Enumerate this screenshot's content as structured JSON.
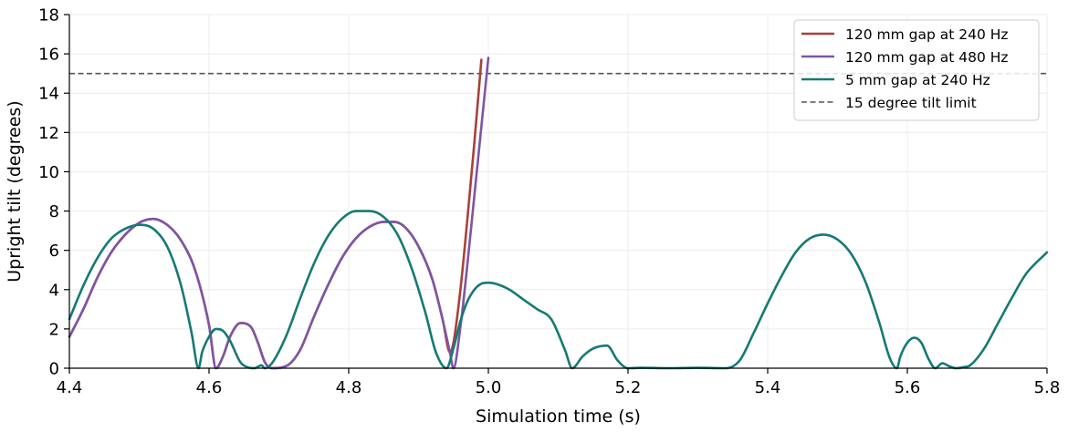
{
  "chart_data": {
    "type": "line",
    "title": "",
    "xlabel": "Simulation time (s)",
    "ylabel": "Upright tilt (degrees)",
    "xlim": [
      4.4,
      5.8
    ],
    "ylim": [
      0,
      18
    ],
    "xticks": [
      4.4,
      4.6,
      4.8,
      5.0,
      5.2,
      5.4,
      5.6,
      5.8
    ],
    "xtick_labels": [
      "4.4",
      "4.6",
      "4.8",
      "5.0",
      "5.2",
      "5.4",
      "5.6",
      "5.8"
    ],
    "yticks": [
      0,
      2,
      4,
      6,
      8,
      10,
      12,
      14,
      16,
      18
    ],
    "ytick_labels": [
      "0",
      "2",
      "4",
      "6",
      "8",
      "10",
      "12",
      "14",
      "16",
      "18"
    ],
    "grid": true,
    "legend_position": "top-right",
    "series": [
      {
        "name": "120 mm gap at 240 Hz",
        "color": "#a8413a",
        "x": [
          4.4,
          4.42,
          4.44,
          4.46,
          4.48,
          4.5,
          4.51,
          4.52,
          4.54,
          4.56,
          4.58,
          4.6,
          4.61,
          4.62,
          4.63,
          4.645,
          4.66,
          4.67,
          4.68,
          4.69,
          4.71,
          4.73,
          4.75,
          4.77,
          4.79,
          4.81,
          4.83,
          4.85,
          4.865,
          4.88,
          4.9,
          4.92,
          4.935,
          4.945,
          4.95,
          4.96,
          4.97,
          4.98,
          4.99
        ],
        "y": [
          1.6,
          3.0,
          4.6,
          5.9,
          6.8,
          7.4,
          7.55,
          7.6,
          7.3,
          6.5,
          5.0,
          2.2,
          0.0,
          0.6,
          1.6,
          2.3,
          2.1,
          1.3,
          0.3,
          0.0,
          0.1,
          0.9,
          2.6,
          4.2,
          5.6,
          6.6,
          7.2,
          7.45,
          7.45,
          7.2,
          6.2,
          4.5,
          2.4,
          0.8,
          1.3,
          4.0,
          7.6,
          11.5,
          15.7
        ]
      },
      {
        "name": "120 mm gap at 480 Hz",
        "color": "#7e55a4",
        "x": [
          4.4,
          4.42,
          4.44,
          4.46,
          4.48,
          4.5,
          4.51,
          4.52,
          4.54,
          4.56,
          4.58,
          4.6,
          4.61,
          4.62,
          4.63,
          4.645,
          4.66,
          4.67,
          4.68,
          4.69,
          4.71,
          4.73,
          4.75,
          4.77,
          4.79,
          4.81,
          4.83,
          4.85,
          4.865,
          4.88,
          4.9,
          4.92,
          4.935,
          4.945,
          4.95,
          4.96,
          4.97,
          4.98,
          4.99,
          5.0
        ],
        "y": [
          1.6,
          3.0,
          4.6,
          5.9,
          6.8,
          7.4,
          7.55,
          7.6,
          7.3,
          6.5,
          5.0,
          2.2,
          0.0,
          0.6,
          1.6,
          2.3,
          2.1,
          1.3,
          0.3,
          0.0,
          0.1,
          0.9,
          2.6,
          4.2,
          5.6,
          6.6,
          7.2,
          7.45,
          7.45,
          7.2,
          6.2,
          4.5,
          2.4,
          0.8,
          0.0,
          2.1,
          5.3,
          8.8,
          12.3,
          15.8
        ]
      },
      {
        "name": "5 mm gap at 240 Hz",
        "color": "#157a74",
        "x": [
          4.4,
          4.42,
          4.44,
          4.46,
          4.48,
          4.5,
          4.52,
          4.54,
          4.56,
          4.575,
          4.585,
          4.59,
          4.6,
          4.61,
          4.62,
          4.63,
          4.645,
          4.655,
          4.665,
          4.675,
          4.68,
          4.69,
          4.71,
          4.73,
          4.75,
          4.77,
          4.79,
          4.81,
          4.83,
          4.85,
          4.87,
          4.89,
          4.91,
          4.925,
          4.94,
          4.95,
          4.96,
          4.97,
          4.98,
          4.99,
          5.0,
          5.01,
          5.03,
          5.05,
          5.07,
          5.09,
          5.11,
          5.12,
          5.135,
          5.15,
          5.17,
          5.185,
          5.2,
          5.22,
          5.26,
          5.3,
          5.34,
          5.36,
          5.38,
          5.4,
          5.42,
          5.44,
          5.46,
          5.48,
          5.5,
          5.52,
          5.54,
          5.56,
          5.575,
          5.585,
          5.59,
          5.6,
          5.61,
          5.62,
          5.63,
          5.64,
          5.65,
          5.66,
          5.67,
          5.68,
          5.69,
          5.71,
          5.73,
          5.75,
          5.77,
          5.8
        ],
        "y": [
          2.5,
          4.2,
          5.6,
          6.6,
          7.1,
          7.3,
          7.1,
          6.2,
          4.2,
          1.8,
          0.0,
          0.8,
          1.6,
          2.0,
          1.9,
          1.4,
          0.3,
          0.05,
          0.0,
          0.15,
          0.0,
          0.25,
          1.6,
          3.5,
          5.3,
          6.7,
          7.6,
          8.0,
          8.0,
          7.7,
          6.8,
          5.1,
          2.8,
          0.8,
          0.0,
          1.0,
          2.4,
          3.4,
          4.0,
          4.3,
          4.35,
          4.3,
          4.0,
          3.5,
          3.0,
          2.5,
          0.9,
          0.0,
          0.6,
          1.0,
          1.15,
          0.4,
          0.0,
          0.02,
          0.0,
          0.02,
          0.0,
          0.4,
          1.8,
          3.3,
          4.7,
          5.9,
          6.6,
          6.8,
          6.55,
          5.8,
          4.4,
          2.3,
          0.5,
          0.0,
          0.6,
          1.3,
          1.55,
          1.3,
          0.5,
          0.0,
          0.25,
          0.1,
          0.0,
          0.05,
          0.15,
          1.0,
          2.3,
          3.6,
          4.8,
          5.9
        ]
      },
      {
        "name": "15 degree tilt limit",
        "color": "#555555",
        "style": "dashed",
        "x": [
          4.4,
          5.8
        ],
        "y": [
          15,
          15
        ]
      }
    ]
  }
}
